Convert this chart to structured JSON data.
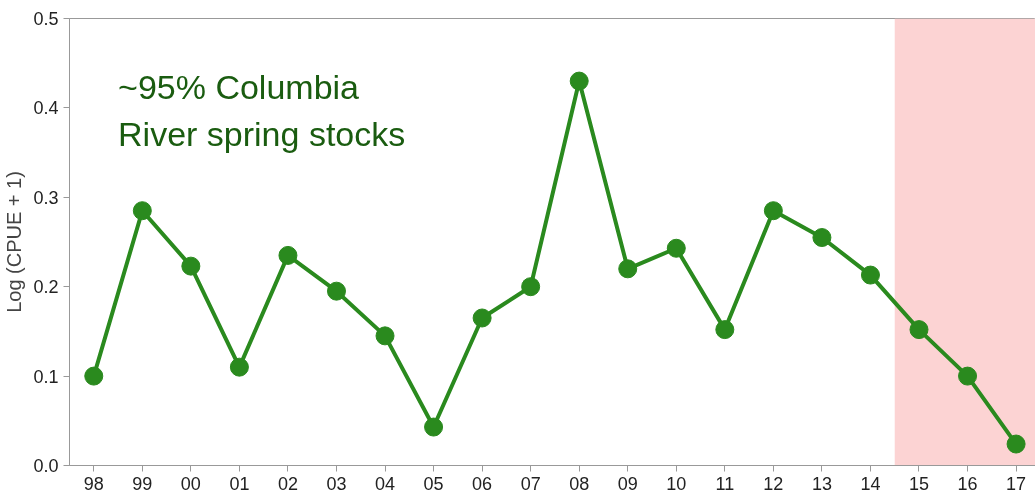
{
  "chart_data": {
    "type": "line",
    "ylabel": "Log (CPUE + 1)",
    "categories": [
      "98",
      "99",
      "00",
      "01",
      "02",
      "03",
      "04",
      "05",
      "06",
      "07",
      "08",
      "09",
      "10",
      "11",
      "12",
      "13",
      "14",
      "15",
      "16",
      "17"
    ],
    "series": [
      {
        "color": "#2a8a1e",
        "values": [
          0.1,
          0.285,
          0.223,
          0.11,
          0.235,
          0.195,
          0.145,
          0.043,
          0.165,
          0.2,
          0.43,
          0.22,
          0.243,
          0.152,
          0.285,
          0.255,
          0.213,
          0.152,
          0.1,
          0.024
        ]
      }
    ],
    "ylim": [
      0,
      0.5
    ],
    "yticks": [
      {
        "value": 0,
        "label": "0.0"
      },
      0.1,
      0.2,
      0.3,
      0.4,
      0.5
    ],
    "bands": [
      {
        "axis": "x",
        "from": "15",
        "to": "17",
        "label": null,
        "color": "#fcd3d3"
      }
    ],
    "annotations": [
      "~95% Columbia\nRiver spring stocks"
    ],
    "marker": "circle",
    "line_style": "solid",
    "grid": false
  }
}
